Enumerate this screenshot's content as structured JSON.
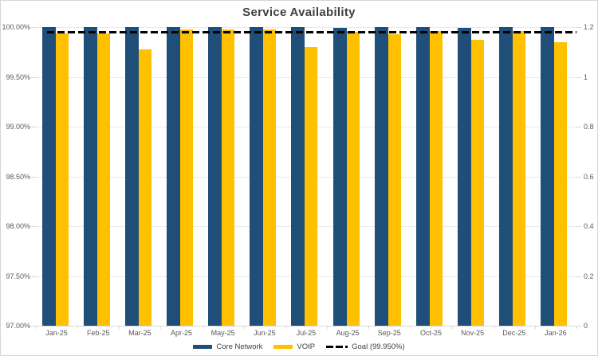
{
  "chart_data": {
    "type": "bar",
    "title": "Service Availability",
    "categories": [
      "Jan-25",
      "Feb-25",
      "Mar-25",
      "Apr-25",
      "May-25",
      "Jun-25",
      "Jul-25",
      "Aug-25",
      "Sep-25",
      "Oct-25",
      "Nov-25",
      "Dec-25",
      "Jan-26"
    ],
    "series": [
      {
        "name": "Core Network",
        "color": "#1F4E79",
        "values": [
          100.0,
          100.0,
          100.0,
          100.0,
          100.0,
          100.0,
          100.0,
          99.99,
          100.0,
          100.0,
          99.99,
          100.0,
          100.0
        ]
      },
      {
        "name": "VOIP",
        "color": "#FFC000",
        "values": [
          99.94,
          99.94,
          99.78,
          99.98,
          99.98,
          99.98,
          99.8,
          99.95,
          99.93,
          99.96,
          99.87,
          99.96,
          99.85
        ]
      }
    ],
    "goal_line": {
      "label": "Goal (99.950%)",
      "value": 99.95,
      "color": "#000000",
      "style": "dashed"
    },
    "left_axis": {
      "min": 97.0,
      "max": 100.0,
      "step": 0.5,
      "tick_labels": [
        "100.00%",
        "99.50%",
        "99.00%",
        "98.50%",
        "98.00%",
        "97.50%",
        "97.00%"
      ]
    },
    "right_axis": {
      "min": 0,
      "max": 1.2,
      "step": 0.2,
      "tick_labels": [
        "1.2",
        "1",
        "0.8",
        "0.6",
        "0.4",
        "0.2",
        "0"
      ]
    },
    "legend": {
      "position": "bottom",
      "entries": [
        "Core Network",
        "VOIP",
        "Goal (99.950%)"
      ]
    },
    "grid": "horizontal",
    "text_colors": {
      "title": "#404040",
      "axis": "#595959",
      "legend": "#404040"
    }
  }
}
